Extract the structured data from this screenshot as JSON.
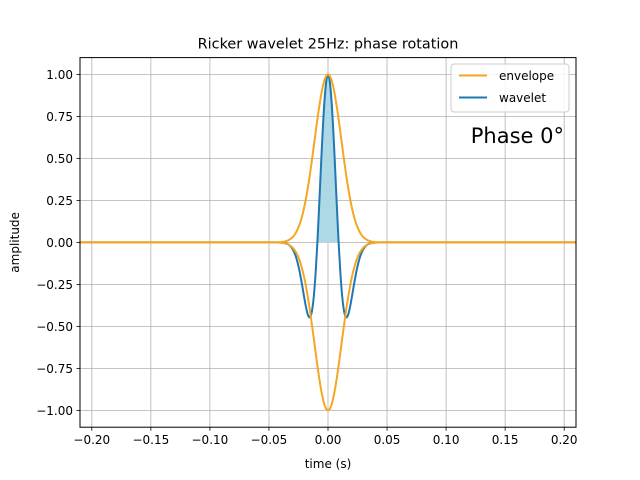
{
  "chart_data": {
    "type": "line",
    "title": "Ricker wavelet 25Hz: phase rotation",
    "xlabel": "time (s)",
    "ylabel": "amplitude",
    "xlim": [
      -0.21,
      0.21
    ],
    "ylim": [
      -1.1,
      1.1
    ],
    "x_ticks": [
      -0.2,
      -0.15,
      -0.1,
      -0.05,
      0.0,
      0.05,
      0.1,
      0.15,
      0.2
    ],
    "x_tick_labels": [
      "−0.20",
      "−0.15",
      "−0.10",
      "−0.05",
      "0.00",
      "0.05",
      "0.10",
      "0.15",
      "0.20"
    ],
    "y_ticks": [
      -1.0,
      -0.75,
      -0.5,
      -0.25,
      0.0,
      0.25,
      0.5,
      0.75,
      1.0
    ],
    "y_tick_labels": [
      "−1.00",
      "−0.75",
      "−0.50",
      "−0.25",
      "0.00",
      "0.25",
      "0.50",
      "0.75",
      "1.00"
    ],
    "grid": true,
    "legend_position": "top-right",
    "annotation": "Phase 0°",
    "frequency_hz": 25,
    "phase_deg": 0,
    "x_range": [
      -0.21,
      0.21
    ],
    "series": [
      {
        "name": "envelope",
        "color": "#f5a623",
        "style": "mirrored-envelope"
      },
      {
        "name": "wavelet",
        "color": "#1f77b4",
        "style": "line"
      }
    ],
    "fill": {
      "color": "#add8e6",
      "region": "wavelet-positive-lobe"
    }
  }
}
